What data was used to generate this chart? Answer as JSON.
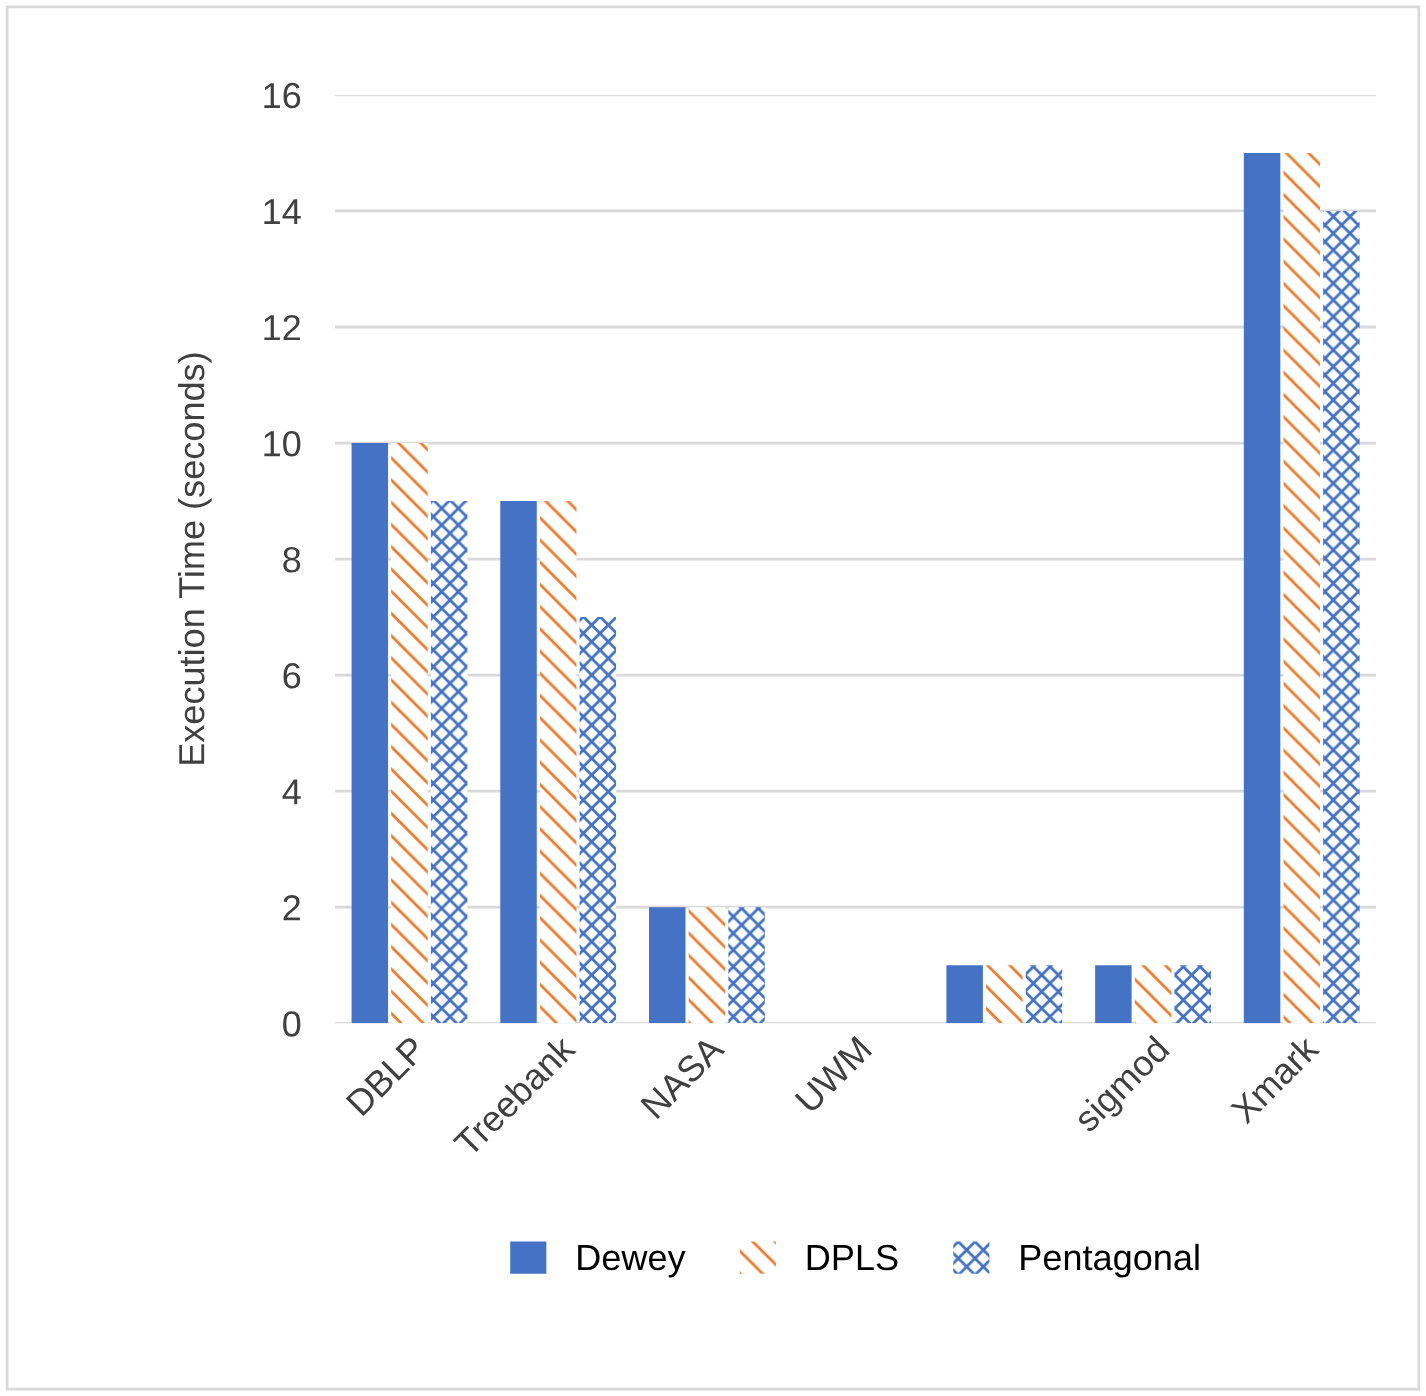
{
  "chart_data": {
    "type": "bar",
    "ylabel": "Execution Time (seconds)",
    "categories": [
      "DBLP",
      "Treebank",
      "NASA",
      "UWM",
      null,
      "sigmod",
      "Xmark"
    ],
    "series": [
      {
        "name": "Dewey",
        "color": "#4472c4",
        "values": [
          10,
          9,
          2,
          0,
          1,
          1,
          15
        ]
      },
      {
        "name": "DPLS",
        "color": "#ed7d31",
        "values": [
          10,
          9,
          2,
          0,
          1,
          1,
          15
        ]
      },
      {
        "name": "Pentagonal",
        "color": "#4472c4",
        "values": [
          9,
          7,
          2,
          0,
          1,
          1,
          14
        ]
      }
    ],
    "ylim": [
      0,
      16
    ],
    "yticks": [
      0,
      2,
      4,
      6,
      8,
      10,
      12,
      14,
      16
    ],
    "grid": "y",
    "legend": "bottom"
  }
}
